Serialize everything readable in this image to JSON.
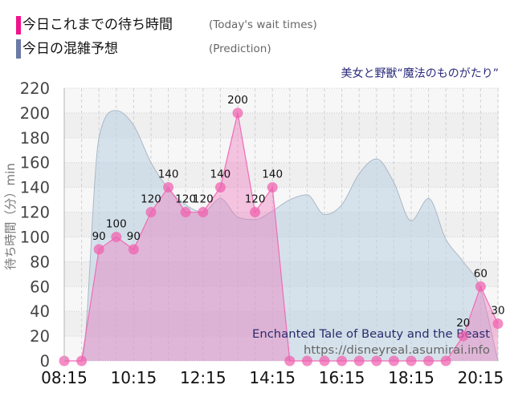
{
  "legend": {
    "today": {
      "label_ja": "今日これまでの待ち時間",
      "label_en": "(Today's wait times)",
      "color": "#f0148c"
    },
    "prediction": {
      "label_ja": "今日の混雑予想",
      "label_en": "(Prediction)",
      "color": "#6b7aa6"
    }
  },
  "watermark": {
    "title_en": "Enchanted Tale of Beauty and the Beast",
    "url": "https://disneyreal.asumirai.info"
  },
  "colors": {
    "today_fill": "rgba(240,110,185,0.38)",
    "today_stroke": "#f06bb5",
    "today_point": "rgba(240,95,175,0.72)",
    "prediction_fill": "rgba(190,210,225,0.58)",
    "prediction_stroke": "#aab8c6",
    "band_light": "#f7f7f7",
    "band_dark": "#efefef",
    "title": "#2a2a7c",
    "watermark_title": "#2b2b6e",
    "watermark_url": "#666666"
  },
  "chart_data": {
    "type": "area",
    "title": "美女と野獣“魔法のものがたり”",
    "xlabel": "",
    "ylabel": "待ち時間（分）min",
    "ylim": [
      0,
      220
    ],
    "yticks": [
      0,
      20,
      40,
      60,
      80,
      100,
      120,
      140,
      160,
      180,
      200,
      220
    ],
    "grid": true,
    "legend_position": "top-left",
    "x": [
      "08:15",
      "08:45",
      "09:15",
      "09:45",
      "10:15",
      "10:45",
      "11:15",
      "11:45",
      "12:15",
      "12:45",
      "13:15",
      "13:45",
      "14:15",
      "14:45",
      "15:15",
      "15:45",
      "16:15",
      "16:45",
      "17:15",
      "17:45",
      "18:15",
      "18:45",
      "19:15",
      "19:45",
      "20:15",
      "20:45"
    ],
    "x_tick_labels": [
      "08:15",
      "10:15",
      "12:15",
      "14:15",
      "16:15",
      "18:15",
      "20:15"
    ],
    "series": [
      {
        "name": "今日これまでの待ち時間 (Today's wait times)",
        "color": "#f0148c",
        "data_labels": true,
        "values": [
          0,
          0,
          90,
          100,
          90,
          120,
          140,
          120,
          120,
          140,
          200,
          120,
          140,
          0,
          0,
          0,
          0,
          0,
          0,
          0,
          0,
          0,
          0,
          20,
          60,
          30
        ]
      },
      {
        "name": "今日の混雑予想 (Prediction)",
        "color": "#6b7aa6",
        "data_labels": false,
        "values": [
          0,
          0,
          180,
          202,
          190,
          160,
          139,
          126,
          120,
          131,
          116,
          114,
          121,
          130,
          134,
          118,
          126,
          151,
          163,
          144,
          113,
          131,
          98,
          80,
          58,
          0
        ]
      }
    ]
  }
}
